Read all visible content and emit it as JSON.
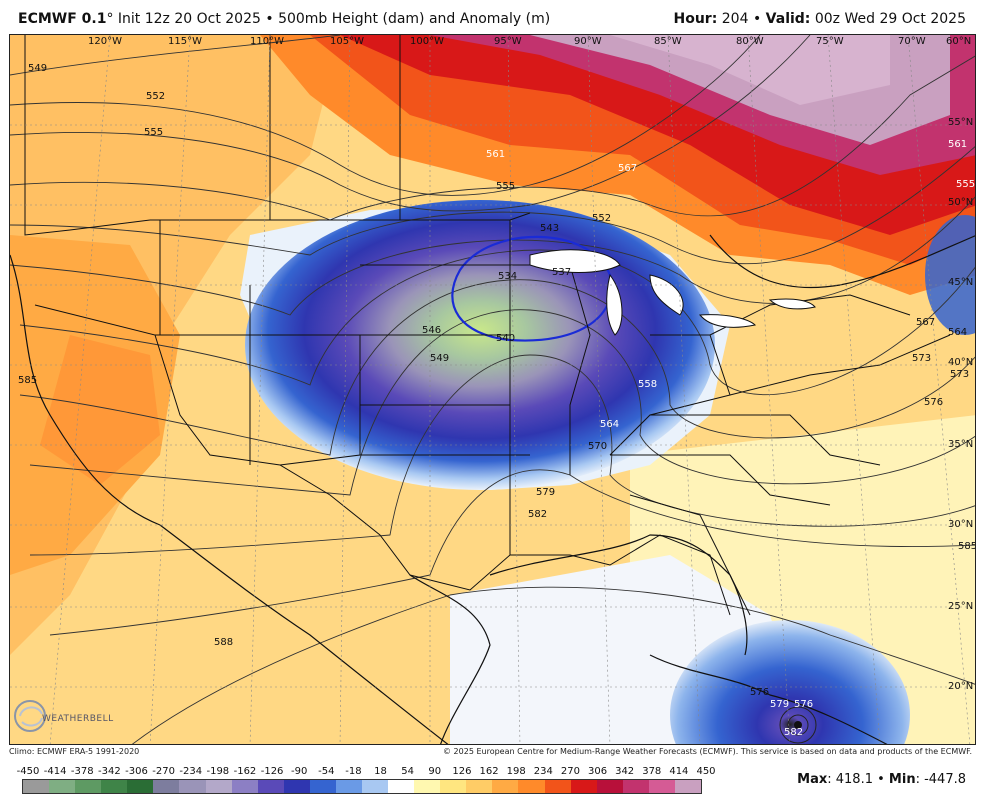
{
  "header": {
    "model": "ECMWF 0.1",
    "init": "° Init 12z 20 Oct 2025",
    "product": "• 500mb Height (dam) and Anomaly (m)",
    "hour_label": "Hour:",
    "hour_value": "204",
    "valid_label": "Valid:",
    "valid_value": "00z Wed 29 Oct 2025"
  },
  "longitudes": [
    "120°W",
    "115°W",
    "110°W",
    "105°W",
    "100°W",
    "95°W",
    "90°W",
    "85°W",
    "80°W",
    "75°W",
    "70°W",
    "60°N"
  ],
  "latitudes": [
    "55°N",
    "50°N",
    "45°N",
    "40°N",
    "35°N",
    "30°N",
    "25°N",
    "20°N"
  ],
  "contour_labels": [
    "549",
    "552",
    "555",
    "561",
    "567",
    "555",
    "552",
    "543",
    "534",
    "537",
    "540",
    "546",
    "549",
    "558",
    "564",
    "570",
    "579",
    "582",
    "585",
    "588",
    "573",
    "576",
    "567",
    "564",
    "573",
    "576",
    "579",
    "576",
    "582",
    "585",
    "555",
    "561"
  ],
  "logo_text": "WEATHERBELL",
  "credits_left": "Climo: ECMWF ERA-5 1991-2020",
  "credits_right": "© 2025 European Centre for Medium-Range Weather Forecasts (ECMWF). This service is based on data and products of the ECMWF.",
  "colorbar": {
    "ticks": [
      "-450",
      "-414",
      "-378",
      "-342",
      "-306",
      "-270",
      "-234",
      "-198",
      "-162",
      "-126",
      "-90",
      "-54",
      "-18",
      "18",
      "54",
      "90",
      "126",
      "162",
      "198",
      "234",
      "270",
      "306",
      "342",
      "378",
      "414",
      "450"
    ],
    "colors": [
      "#9a9a9a",
      "#7fae83",
      "#5e9a63",
      "#3f8448",
      "#2a6d35",
      "#7d7d9e",
      "#9a94b8",
      "#b3a8c9",
      "#8c7fc4",
      "#5a4ab8",
      "#2f36b0",
      "#3564d0",
      "#6a9ae6",
      "#a8c8f2",
      "#ffffff",
      "#fff8b0",
      "#ffe680",
      "#ffcc66",
      "#ffaa44",
      "#ff8a2a",
      "#f2541a",
      "#d81818",
      "#b8103a",
      "#c2336e",
      "#d55b95",
      "#c9a0c0"
    ]
  },
  "max_label": "Max",
  "max_value": ": 418.1 •",
  "min_label": "Min",
  "min_value": ": -447.8"
}
